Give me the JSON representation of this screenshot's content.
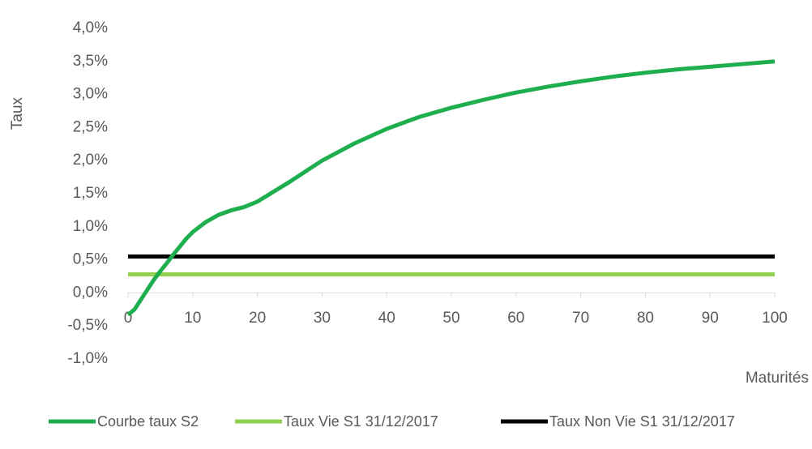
{
  "chart_data": {
    "type": "line",
    "y_label": "Taux",
    "x_label": "Maturités",
    "xlim": [
      0,
      100
    ],
    "xticks": [
      0,
      10,
      20,
      30,
      40,
      50,
      60,
      70,
      80,
      90,
      100
    ],
    "ylim": [
      -1,
      4
    ],
    "yticks": [
      {
        "value": -1,
        "label": "-1,0%"
      },
      {
        "value": -0.5,
        "label": "-0,5%"
      },
      {
        "value": 0,
        "label": "0,0%"
      },
      {
        "value": 0.5,
        "label": "0,5%"
      },
      {
        "value": 1,
        "label": "1,0%"
      },
      {
        "value": 1.5,
        "label": "1,5%"
      },
      {
        "value": 2,
        "label": "2,0%"
      },
      {
        "value": 2.5,
        "label": "2,5%"
      },
      {
        "value": 3,
        "label": "3,0%"
      },
      {
        "value": 3.5,
        "label": "3,5%"
      },
      {
        "value": 4,
        "label": "4,0%"
      }
    ],
    "legend": "bottom",
    "series": [
      {
        "name": "Courbe taux S2",
        "color": "#1fae4e",
        "x": [
          0,
          1,
          2,
          3,
          4,
          5,
          6,
          7,
          8,
          9,
          10,
          12,
          14,
          16,
          18,
          20,
          25,
          30,
          35,
          40,
          45,
          50,
          55,
          60,
          65,
          70,
          75,
          80,
          85,
          90,
          95,
          100
        ],
        "values": [
          -0.33,
          -0.25,
          -0.1,
          0.05,
          0.2,
          0.33,
          0.45,
          0.58,
          0.7,
          0.82,
          0.92,
          1.07,
          1.18,
          1.25,
          1.3,
          1.38,
          1.68,
          2.0,
          2.26,
          2.48,
          2.66,
          2.8,
          2.92,
          3.03,
          3.12,
          3.2,
          3.27,
          3.33,
          3.38,
          3.42,
          3.46,
          3.5
        ]
      },
      {
        "name": "Taux Vie S1 31/12/2017",
        "color": "#92d050",
        "x": [
          0,
          100
        ],
        "values": [
          0.28,
          0.28
        ]
      },
      {
        "name": "Taux Non Vie S1 31/12/2017",
        "color": "#000000",
        "x": [
          0,
          100
        ],
        "values": [
          0.55,
          0.55
        ]
      }
    ]
  }
}
